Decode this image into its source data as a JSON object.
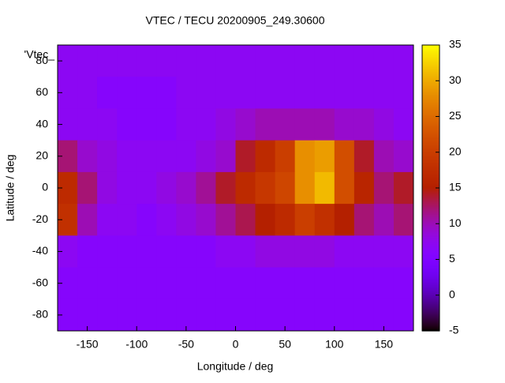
{
  "chart_data": {
    "type": "heatmap",
    "title": "VTEC / TECU 20200905_249.30600",
    "x_label": "Longitude / deg",
    "y_label": "Latitude / deg",
    "key": "'Vtec_",
    "colormap": "gnuplot",
    "x": [
      -170,
      -150,
      -130,
      -110,
      -90,
      -70,
      -50,
      -30,
      -10,
      10,
      30,
      50,
      70,
      90,
      110,
      130,
      150,
      170
    ],
    "y": [
      80,
      60,
      40,
      20,
      0,
      -20,
      -40,
      -60,
      -80
    ],
    "values": [
      [
        7,
        7,
        7,
        7,
        7,
        7,
        7,
        7,
        7,
        7,
        7,
        7,
        7,
        7,
        7,
        7,
        7,
        7
      ],
      [
        7,
        7,
        6,
        6,
        6,
        6,
        7,
        7,
        7,
        7,
        7,
        7,
        7,
        7,
        7,
        7,
        7,
        7
      ],
      [
        7,
        7,
        7,
        6,
        6,
        6,
        7,
        7,
        8,
        9,
        10,
        10,
        10,
        10,
        9,
        9,
        8,
        7
      ],
      [
        12,
        9,
        8,
        7,
        7,
        7,
        7,
        8,
        9,
        14,
        17,
        20,
        28,
        29,
        22,
        14,
        10,
        9
      ],
      [
        17,
        12,
        8,
        7,
        7,
        8,
        9,
        11,
        14,
        17,
        19,
        21,
        28,
        31,
        22,
        16,
        12,
        14
      ],
      [
        18,
        10,
        7,
        7,
        6,
        7,
        8,
        9,
        11,
        13,
        15,
        17,
        20,
        18,
        15,
        12,
        10,
        12
      ],
      [
        7,
        6,
        6,
        6,
        6,
        6,
        6,
        6,
        7,
        7,
        8,
        8,
        8,
        8,
        7,
        7,
        7,
        7
      ],
      [
        6,
        6,
        6,
        6,
        6,
        6,
        6,
        6,
        6,
        6,
        6,
        6,
        6,
        6,
        6,
        6,
        6,
        6
      ],
      [
        6,
        6,
        6,
        6,
        6,
        6,
        6,
        6,
        6,
        6,
        6,
        6,
        6,
        6,
        6,
        6,
        6,
        6
      ]
    ],
    "xlim": [
      -180,
      180
    ],
    "ylim": [
      -90,
      90
    ],
    "xticks": [
      -150,
      -100,
      -50,
      0,
      50,
      100,
      150
    ],
    "yticks": [
      -80,
      -60,
      -40,
      -20,
      0,
      20,
      40,
      60,
      80
    ],
    "cblim": [
      -5,
      35
    ],
    "cbticks": [
      -5,
      0,
      5,
      10,
      15,
      20,
      25,
      30,
      35
    ]
  }
}
